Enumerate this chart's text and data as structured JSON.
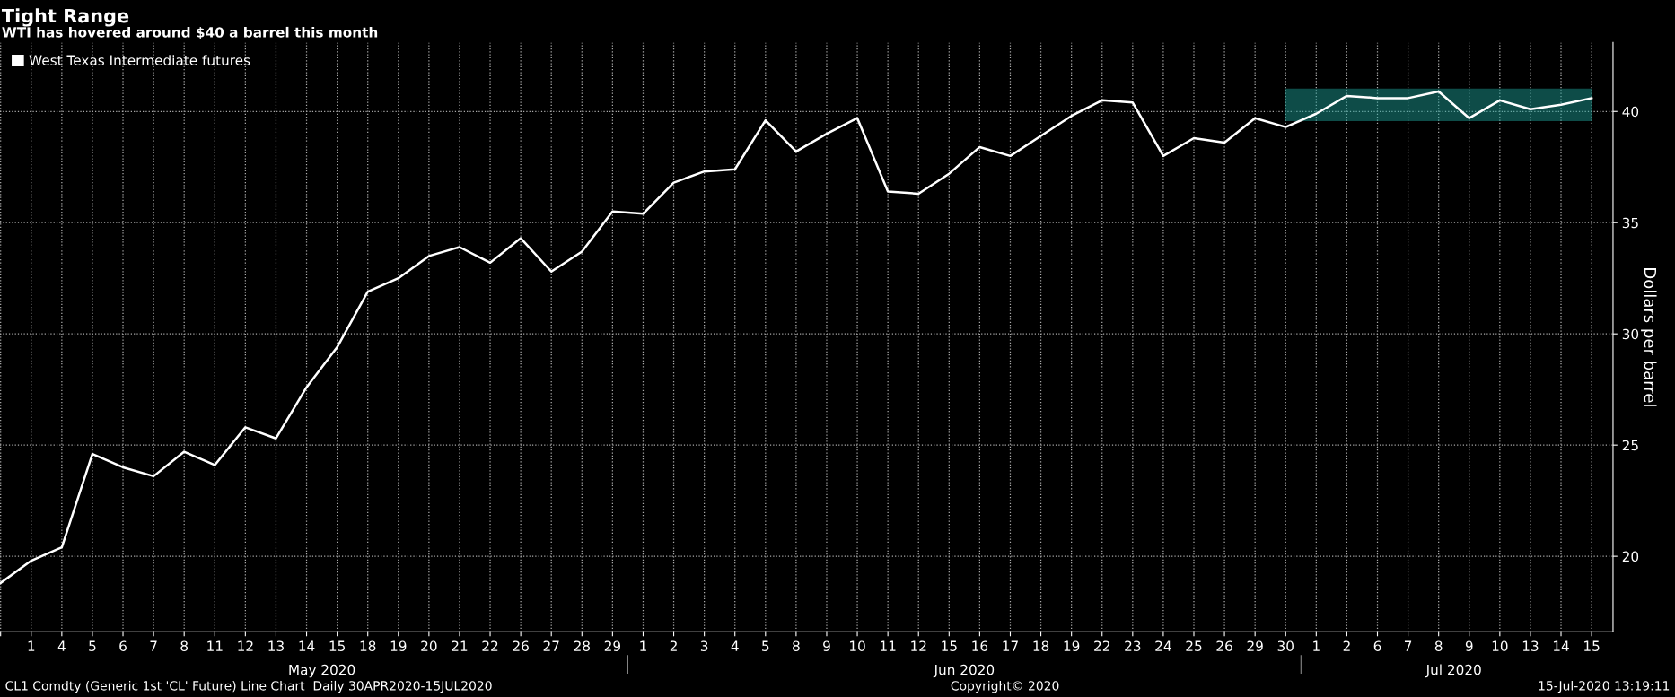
{
  "chart_data": {
    "type": "line",
    "title": "Tight Range",
    "subtitle": "WTI has hovered around $40 a barrel this month",
    "ylabel": "Dollars per barrel",
    "categories": [
      null,
      "1",
      "4",
      "5",
      "6",
      "7",
      "8",
      "11",
      "12",
      "13",
      "14",
      "15",
      "18",
      "19",
      "20",
      "21",
      "22",
      "26",
      "27",
      "28",
      "29",
      "1",
      "2",
      "3",
      "4",
      "5",
      "8",
      "9",
      "10",
      "11",
      "12",
      "15",
      "16",
      "17",
      "18",
      "19",
      "22",
      "23",
      "24",
      "25",
      "26",
      "29",
      "30",
      "1",
      "2",
      "6",
      "7",
      "8",
      "9",
      "10",
      "13",
      "14",
      "15"
    ],
    "series": [
      {
        "name": "West Texas Intermediate futures",
        "color": "#ffffff",
        "values": [
          18.8,
          19.8,
          20.4,
          24.6,
          24.0,
          23.6,
          24.7,
          24.1,
          25.8,
          25.3,
          27.6,
          29.4,
          31.9,
          32.5,
          33.5,
          33.9,
          33.2,
          34.3,
          32.8,
          33.7,
          35.5,
          35.4,
          36.8,
          37.3,
          37.4,
          39.6,
          38.2,
          39.0,
          39.7,
          36.4,
          36.3,
          37.2,
          38.4,
          38.0,
          38.9,
          39.8,
          40.5,
          40.4,
          38.0,
          38.8,
          38.6,
          39.7,
          39.3,
          39.9,
          40.7,
          40.6,
          40.6,
          40.9,
          39.7,
          40.5,
          40.1,
          40.3,
          40.6
        ]
      }
    ],
    "ylim": [
      16.6,
      43.1
    ],
    "yticks": [
      20,
      25,
      30,
      35,
      40
    ],
    "grid": true,
    "legend": "top left",
    "line_style": "solid",
    "marker": "none",
    "bands": [
      {
        "axis": "y",
        "from": 39.6,
        "to": 41.0,
        "color": "#1fa8a0"
      }
    ],
    "annotations": [
      "May 2020",
      "Jun 2020",
      "Jul 2020",
      "CL1 Comdty (Generic 1st 'CL' Future) Line Chart  Daily 30APR2020-15JUL2020",
      "Copyright© 2020",
      "15-Jul-2020 13:19:11"
    ]
  }
}
